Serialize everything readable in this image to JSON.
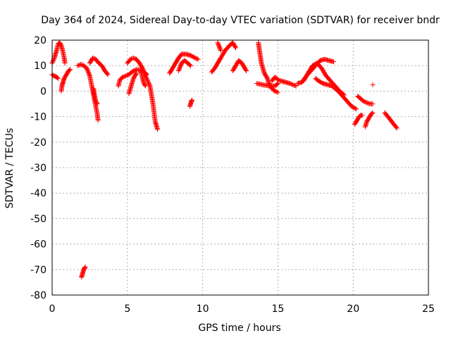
{
  "chart_data": {
    "type": "scatter",
    "title": "Day 364 of 2024, Sidereal Day-to-day VTEC variation (SDTVAR) for receiver bndr",
    "xlabel": "GPS time / hours",
    "ylabel": "SDTVAR / TECUs",
    "xlim": [
      0,
      25
    ],
    "ylim": [
      -80,
      20
    ],
    "xticks": [
      0,
      5,
      10,
      15,
      20,
      25
    ],
    "yticks": [
      -80,
      -70,
      -60,
      -50,
      -40,
      -30,
      -20,
      -10,
      0,
      10,
      20
    ],
    "grid": true,
    "marker": "+",
    "color": "#ff0000",
    "series": [
      {
        "name": "s1",
        "x": [
          0.0,
          0.15,
          0.3,
          0.4,
          0.5,
          0.6,
          0.7,
          0.8,
          0.85
        ],
        "y": [
          11,
          13,
          16,
          18.5,
          19,
          18,
          16,
          13,
          11
        ]
      },
      {
        "name": "s2",
        "x": [
          0.0,
          0.1,
          0.2,
          0.3,
          0.4
        ],
        "y": [
          6.5,
          6,
          5.8,
          5.5,
          5
        ]
      },
      {
        "name": "s3",
        "x": [
          0.6,
          0.65,
          0.7,
          0.75,
          0.8,
          0.9,
          1.0,
          1.1,
          1.2
        ],
        "y": [
          0,
          2,
          3,
          4,
          5,
          6,
          7,
          8,
          8.5
        ]
      },
      {
        "name": "s4",
        "x": [
          1.7,
          1.9,
          2.1,
          2.3,
          2.5,
          2.6,
          2.7,
          2.8,
          2.9,
          3.0,
          3.05
        ],
        "y": [
          10,
          10.5,
          10,
          9,
          6,
          3,
          0,
          -3,
          -6,
          -9,
          -11.5
        ]
      },
      {
        "name": "s5",
        "x": [
          2.5,
          2.7,
          2.9,
          3.1,
          3.3,
          3.5,
          3.7
        ],
        "y": [
          11,
          13,
          12.5,
          11,
          10,
          8,
          6.5
        ]
      },
      {
        "name": "s6",
        "x": [
          2.75,
          2.8,
          2.9,
          3.0
        ],
        "y": [
          1,
          -1,
          -4,
          -5
        ]
      },
      {
        "name": "s7",
        "x": [
          1.95,
          2.0,
          2.05,
          2.1,
          2.15,
          2.2
        ],
        "y": [
          -73,
          -72,
          -71,
          -70,
          -69.5,
          -69
        ]
      },
      {
        "name": "s8",
        "x": [
          4.4,
          4.5,
          4.7,
          4.9,
          5.1,
          5.3,
          5.6,
          6.0,
          6.3
        ],
        "y": [
          2,
          4.5,
          5.5,
          6,
          6.5,
          7.5,
          8.5,
          8,
          6.5
        ]
      },
      {
        "name": "s9",
        "x": [
          5.0,
          5.2,
          5.4,
          5.6,
          5.8,
          6.0,
          6.2,
          6.5,
          6.7,
          6.85,
          7.0
        ],
        "y": [
          11,
          12.5,
          13,
          12.5,
          11,
          9,
          6,
          2,
          -5,
          -12,
          -15
        ]
      },
      {
        "name": "s10",
        "x": [
          5.1,
          5.2,
          5.3,
          5.4,
          5.6
        ],
        "y": [
          -1,
          1,
          3,
          5,
          7
        ]
      },
      {
        "name": "s11",
        "x": [
          5.9,
          6.0,
          6.1,
          6.2
        ],
        "y": [
          8,
          5,
          3,
          2
        ]
      },
      {
        "name": "s12",
        "x": [
          7.8,
          8.0,
          8.2,
          8.4,
          8.6,
          8.9,
          9.2,
          9.5,
          9.7
        ],
        "y": [
          7,
          9,
          11,
          13,
          14.5,
          14.5,
          14,
          13,
          12.5
        ]
      },
      {
        "name": "s13",
        "x": [
          8.4,
          8.6,
          8.8,
          9.0,
          9.2
        ],
        "y": [
          8,
          11,
          12,
          11,
          10
        ]
      },
      {
        "name": "s14",
        "x": [
          9.15,
          9.2,
          9.25,
          9.3
        ],
        "y": [
          -6,
          -5,
          -4,
          -3.5
        ]
      },
      {
        "name": "s15",
        "x": [
          10.6,
          10.8,
          11.0,
          11.2,
          11.5,
          11.8,
          12.0,
          12.2
        ],
        "y": [
          7.5,
          9,
          11,
          13,
          16,
          18,
          19,
          17
        ]
      },
      {
        "name": "s16",
        "x": [
          11.0,
          11.1,
          11.2
        ],
        "y": [
          19,
          17.5,
          16
        ]
      },
      {
        "name": "s17",
        "x": [
          12.0,
          12.2,
          12.4,
          12.6,
          12.8,
          12.9
        ],
        "y": [
          8,
          10,
          12,
          11,
          9,
          8
        ]
      },
      {
        "name": "s18",
        "x": [
          13.7,
          13.8,
          13.9,
          14.0,
          14.1,
          14.2,
          14.3,
          14.4,
          14.6,
          14.8,
          15.0
        ],
        "y": [
          19,
          15,
          11,
          9,
          7,
          6,
          5,
          3,
          1,
          0,
          -0.5
        ]
      },
      {
        "name": "s19",
        "x": [
          13.6,
          14.0,
          14.4,
          14.8,
          15.0
        ],
        "y": [
          3,
          2.5,
          2,
          2,
          3
        ]
      },
      {
        "name": "s20",
        "x": [
          14.6,
          14.8,
          15.0,
          15.2,
          15.5,
          15.8,
          16.0,
          16.2
        ],
        "y": [
          4,
          5.5,
          4.5,
          4,
          3.5,
          3,
          2.5,
          2
        ]
      },
      {
        "name": "s21",
        "x": [
          16.3,
          16.6,
          16.9,
          17.2,
          17.5,
          17.8,
          18.1,
          18.4,
          18.7
        ],
        "y": [
          3,
          3.5,
          6,
          8,
          10,
          12,
          12.5,
          12,
          11.5
        ]
      },
      {
        "name": "s22",
        "x": [
          16.7,
          16.9,
          17.1,
          17.3,
          17.6,
          17.9,
          18.2,
          18.5,
          18.8,
          19.1,
          19.4
        ],
        "y": [
          4,
          6,
          8,
          10,
          11,
          9,
          6,
          4,
          2,
          0,
          -1.5
        ]
      },
      {
        "name": "s23",
        "x": [
          17.5,
          17.7,
          18.0,
          18.3,
          18.6,
          19.0,
          19.3,
          19.6,
          19.9,
          20.2
        ],
        "y": [
          5,
          4,
          3,
          2.5,
          2,
          0,
          -2,
          -4,
          -6,
          -7
        ]
      },
      {
        "name": "s24",
        "x": [
          20.3,
          20.5,
          20.7,
          20.9,
          21.1,
          21.3
        ],
        "y": [
          -2,
          -3,
          -4,
          -4.5,
          -5,
          -5
        ]
      },
      {
        "name": "s25",
        "x": [
          20.1,
          20.2,
          20.3,
          20.4,
          20.5,
          20.6
        ],
        "y": [
          -13,
          -12,
          -11,
          -10,
          -9.5,
          -9.5
        ]
      },
      {
        "name": "s26",
        "x": [
          20.8,
          20.9,
          21.0,
          21.1,
          21.2,
          21.3
        ],
        "y": [
          -14,
          -12,
          -11,
          -10,
          -9,
          -8.5
        ]
      },
      {
        "name": "s27",
        "x": [
          21.3
        ],
        "y": [
          2.5
        ]
      },
      {
        "name": "s28",
        "x": [
          22.1,
          22.3,
          22.5,
          22.7,
          22.9
        ],
        "y": [
          -8.5,
          -10,
          -11.5,
          -13,
          -14.5
        ]
      }
    ]
  }
}
